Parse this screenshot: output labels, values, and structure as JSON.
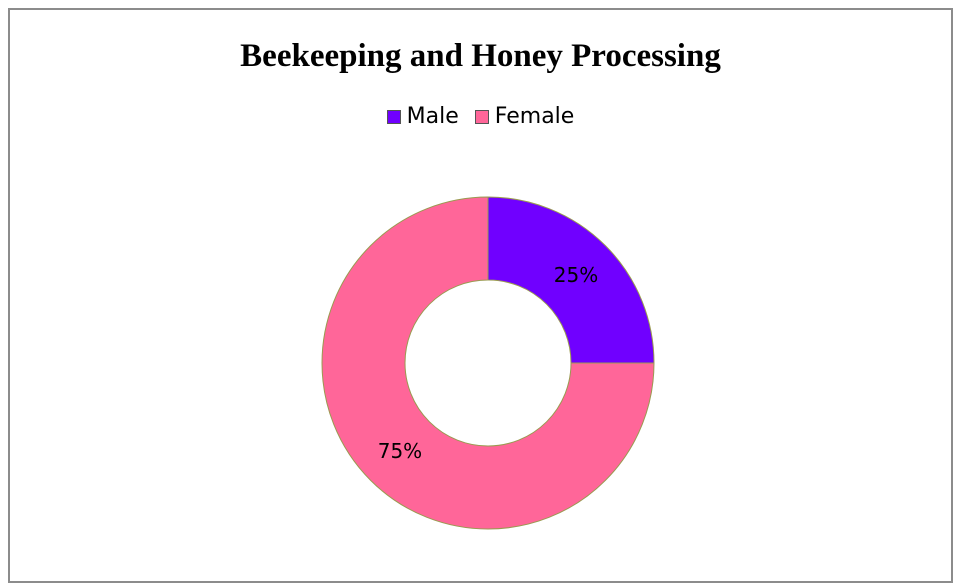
{
  "chart_data": {
    "type": "pie",
    "subtype": "doughnut",
    "title": "Beekeeping and Honey Processing",
    "categories": [
      "Male",
      "Female"
    ],
    "values": [
      25,
      75
    ],
    "labels": [
      "25%",
      "75%"
    ],
    "colors": [
      "#7000FF",
      "#FF6699"
    ],
    "legend_position": "top",
    "start_angle": "top, clockwise"
  },
  "colors": {
    "slice_border": "#9a9a50",
    "frame": "#8c8c8c",
    "background": "#ffffff"
  }
}
